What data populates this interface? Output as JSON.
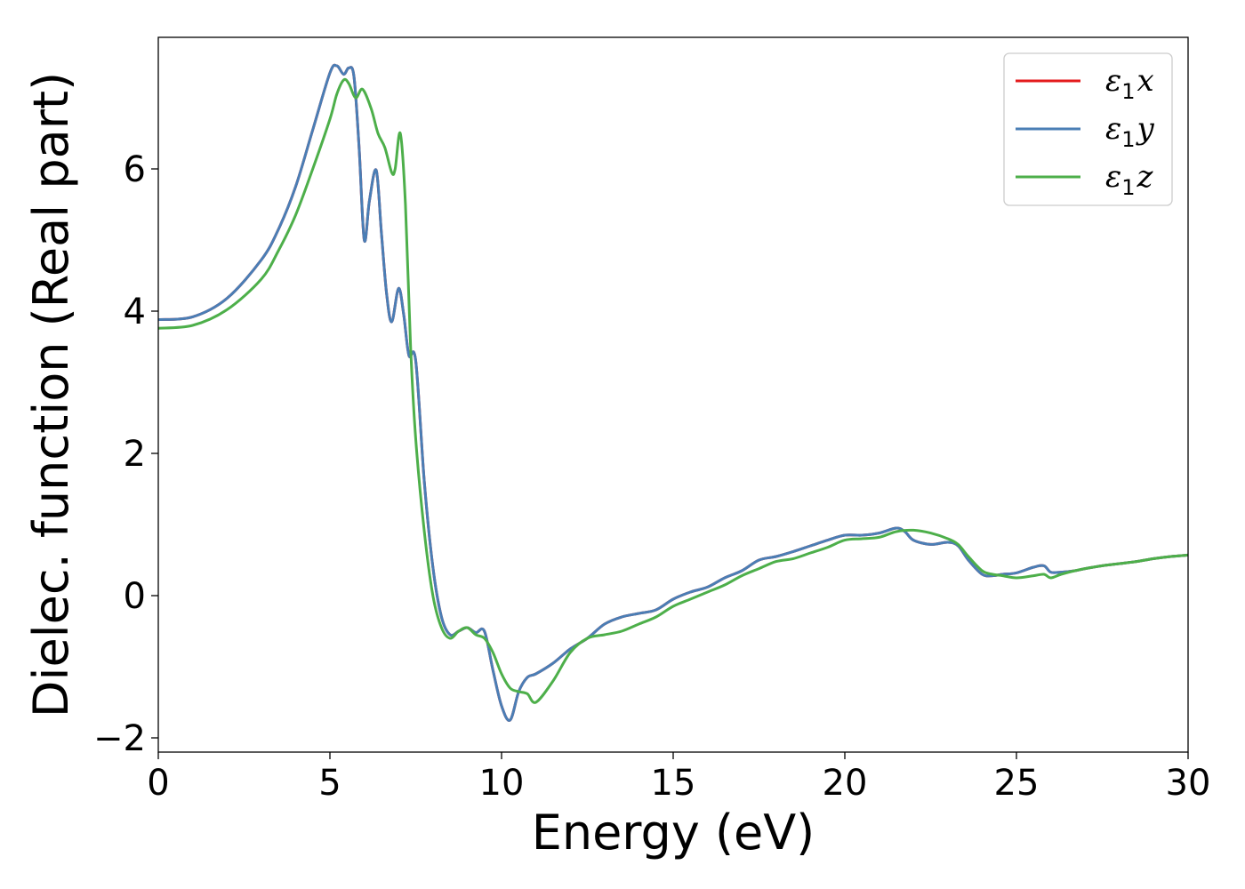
{
  "chart_data": {
    "type": "line",
    "xlabel": "Energy (eV)",
    "ylabel": "Dielec. function (Real part)",
    "xlim": [
      0,
      30
    ],
    "ylim": [
      -2.2,
      7.85
    ],
    "xticks": [
      0,
      5,
      10,
      15,
      20,
      25,
      30
    ],
    "xtick_labels": [
      "0",
      "5",
      "10",
      "15",
      "20",
      "25",
      "30"
    ],
    "yticks": [
      -2,
      0,
      2,
      4,
      6
    ],
    "ytick_labels": [
      "−2",
      "0",
      "2",
      "4",
      "6"
    ],
    "grid": false,
    "legend_position": "top-right",
    "series": [
      {
        "name": "ε1x",
        "legend_symbol": "ε",
        "legend_sub": "1",
        "legend_var": "x",
        "color": "#e41a1c",
        "x": [
          0,
          1,
          2,
          3,
          3.5,
          4,
          4.5,
          5,
          5.2,
          5.4,
          5.55,
          5.7,
          5.85,
          6.0,
          6.15,
          6.35,
          6.5,
          6.65,
          6.8,
          7.0,
          7.15,
          7.3,
          7.5,
          7.75,
          8.0,
          8.25,
          8.5,
          8.75,
          9.0,
          9.25,
          9.5,
          9.75,
          10.0,
          10.25,
          10.5,
          10.75,
          11.0,
          11.5,
          12.0,
          12.5,
          13.0,
          13.5,
          14.0,
          14.5,
          15.0,
          15.5,
          16.0,
          16.5,
          17.0,
          17.5,
          18.0,
          18.5,
          19.0,
          19.5,
          20.0,
          20.5,
          21.0,
          21.5,
          21.75,
          22.0,
          22.5,
          23.0,
          23.3,
          23.6,
          24.0,
          24.3,
          24.6,
          25.0,
          25.5,
          25.8,
          26.0,
          26.3,
          26.7,
          27.0,
          27.5,
          28.0,
          28.5,
          29.0,
          29.5,
          30.0
        ],
        "y": [
          3.88,
          3.92,
          4.18,
          4.72,
          5.15,
          5.75,
          6.55,
          7.35,
          7.45,
          7.33,
          7.42,
          7.3,
          6.3,
          5.0,
          5.55,
          5.98,
          5.1,
          4.25,
          3.85,
          4.32,
          3.95,
          3.38,
          3.3,
          1.6,
          0.4,
          -0.3,
          -0.55,
          -0.5,
          -0.45,
          -0.52,
          -0.5,
          -1.05,
          -1.55,
          -1.75,
          -1.35,
          -1.15,
          -1.1,
          -0.95,
          -0.75,
          -0.6,
          -0.4,
          -0.3,
          -0.25,
          -0.2,
          -0.05,
          0.05,
          0.12,
          0.25,
          0.35,
          0.5,
          0.55,
          0.62,
          0.7,
          0.78,
          0.85,
          0.85,
          0.88,
          0.95,
          0.9,
          0.78,
          0.72,
          0.75,
          0.7,
          0.5,
          0.3,
          0.28,
          0.3,
          0.32,
          0.4,
          0.42,
          0.33,
          0.33,
          0.35,
          0.38,
          0.42,
          0.45,
          0.48,
          0.52,
          0.55,
          0.57
        ]
      },
      {
        "name": "ε1y",
        "legend_symbol": "ε",
        "legend_sub": "1",
        "legend_var": "y",
        "color": "#4a7eb5",
        "x": [
          0,
          1,
          2,
          3,
          3.5,
          4,
          4.5,
          5,
          5.2,
          5.4,
          5.55,
          5.7,
          5.85,
          6.0,
          6.15,
          6.35,
          6.5,
          6.65,
          6.8,
          7.0,
          7.15,
          7.3,
          7.5,
          7.75,
          8.0,
          8.25,
          8.5,
          8.75,
          9.0,
          9.25,
          9.5,
          9.75,
          10.0,
          10.25,
          10.5,
          10.75,
          11.0,
          11.5,
          12.0,
          12.5,
          13.0,
          13.5,
          14.0,
          14.5,
          15.0,
          15.5,
          16.0,
          16.5,
          17.0,
          17.5,
          18.0,
          18.5,
          19.0,
          19.5,
          20.0,
          20.5,
          21.0,
          21.5,
          21.75,
          22.0,
          22.5,
          23.0,
          23.3,
          23.6,
          24.0,
          24.3,
          24.6,
          25.0,
          25.5,
          25.8,
          26.0,
          26.3,
          26.7,
          27.0,
          27.5,
          28.0,
          28.5,
          29.0,
          29.5,
          30.0
        ],
        "y": [
          3.88,
          3.92,
          4.18,
          4.72,
          5.15,
          5.75,
          6.55,
          7.35,
          7.45,
          7.33,
          7.42,
          7.3,
          6.3,
          5.0,
          5.55,
          5.98,
          5.1,
          4.25,
          3.85,
          4.32,
          3.95,
          3.38,
          3.3,
          1.6,
          0.4,
          -0.3,
          -0.55,
          -0.5,
          -0.45,
          -0.52,
          -0.5,
          -1.05,
          -1.55,
          -1.75,
          -1.35,
          -1.15,
          -1.1,
          -0.95,
          -0.75,
          -0.6,
          -0.4,
          -0.3,
          -0.25,
          -0.2,
          -0.05,
          0.05,
          0.12,
          0.25,
          0.35,
          0.5,
          0.55,
          0.62,
          0.7,
          0.78,
          0.85,
          0.85,
          0.88,
          0.95,
          0.9,
          0.78,
          0.72,
          0.75,
          0.7,
          0.5,
          0.3,
          0.28,
          0.3,
          0.32,
          0.4,
          0.42,
          0.33,
          0.33,
          0.35,
          0.38,
          0.42,
          0.45,
          0.48,
          0.52,
          0.55,
          0.57
        ]
      },
      {
        "name": "ε1z",
        "legend_symbol": "ε",
        "legend_sub": "1",
        "legend_var": "z",
        "color": "#4daf4a",
        "x": [
          0,
          1,
          2,
          3,
          3.5,
          4,
          4.5,
          5,
          5.2,
          5.4,
          5.55,
          5.75,
          5.95,
          6.2,
          6.4,
          6.6,
          6.8,
          6.9,
          7.05,
          7.2,
          7.35,
          7.5,
          7.75,
          8.0,
          8.25,
          8.5,
          8.75,
          9.0,
          9.25,
          9.5,
          9.75,
          10.0,
          10.25,
          10.5,
          10.75,
          11.0,
          11.5,
          12.0,
          12.5,
          13.0,
          13.5,
          14.0,
          14.5,
          15.0,
          15.5,
          16.0,
          16.5,
          17.0,
          17.5,
          18.0,
          18.5,
          19.0,
          19.5,
          20.0,
          20.5,
          21.0,
          21.5,
          22.0,
          22.5,
          23.0,
          23.3,
          23.6,
          24.0,
          24.3,
          24.6,
          25.0,
          25.5,
          25.8,
          26.0,
          26.3,
          26.7,
          27.0,
          27.5,
          28.0,
          28.5,
          29.0,
          29.5,
          30.0
        ],
        "y": [
          3.76,
          3.8,
          4.02,
          4.45,
          4.85,
          5.35,
          6.0,
          6.7,
          7.05,
          7.25,
          7.2,
          7.0,
          7.12,
          6.85,
          6.5,
          6.3,
          5.95,
          6.0,
          6.5,
          5.5,
          3.5,
          2.2,
          0.9,
          0.0,
          -0.45,
          -0.6,
          -0.5,
          -0.45,
          -0.55,
          -0.6,
          -0.8,
          -1.1,
          -1.3,
          -1.35,
          -1.38,
          -1.5,
          -1.2,
          -0.8,
          -0.6,
          -0.55,
          -0.5,
          -0.4,
          -0.3,
          -0.15,
          -0.05,
          0.05,
          0.15,
          0.28,
          0.38,
          0.48,
          0.52,
          0.6,
          0.68,
          0.78,
          0.8,
          0.82,
          0.9,
          0.92,
          0.88,
          0.8,
          0.72,
          0.55,
          0.35,
          0.3,
          0.28,
          0.25,
          0.28,
          0.3,
          0.25,
          0.3,
          0.35,
          0.38,
          0.42,
          0.45,
          0.48,
          0.52,
          0.55,
          0.57
        ]
      }
    ]
  }
}
